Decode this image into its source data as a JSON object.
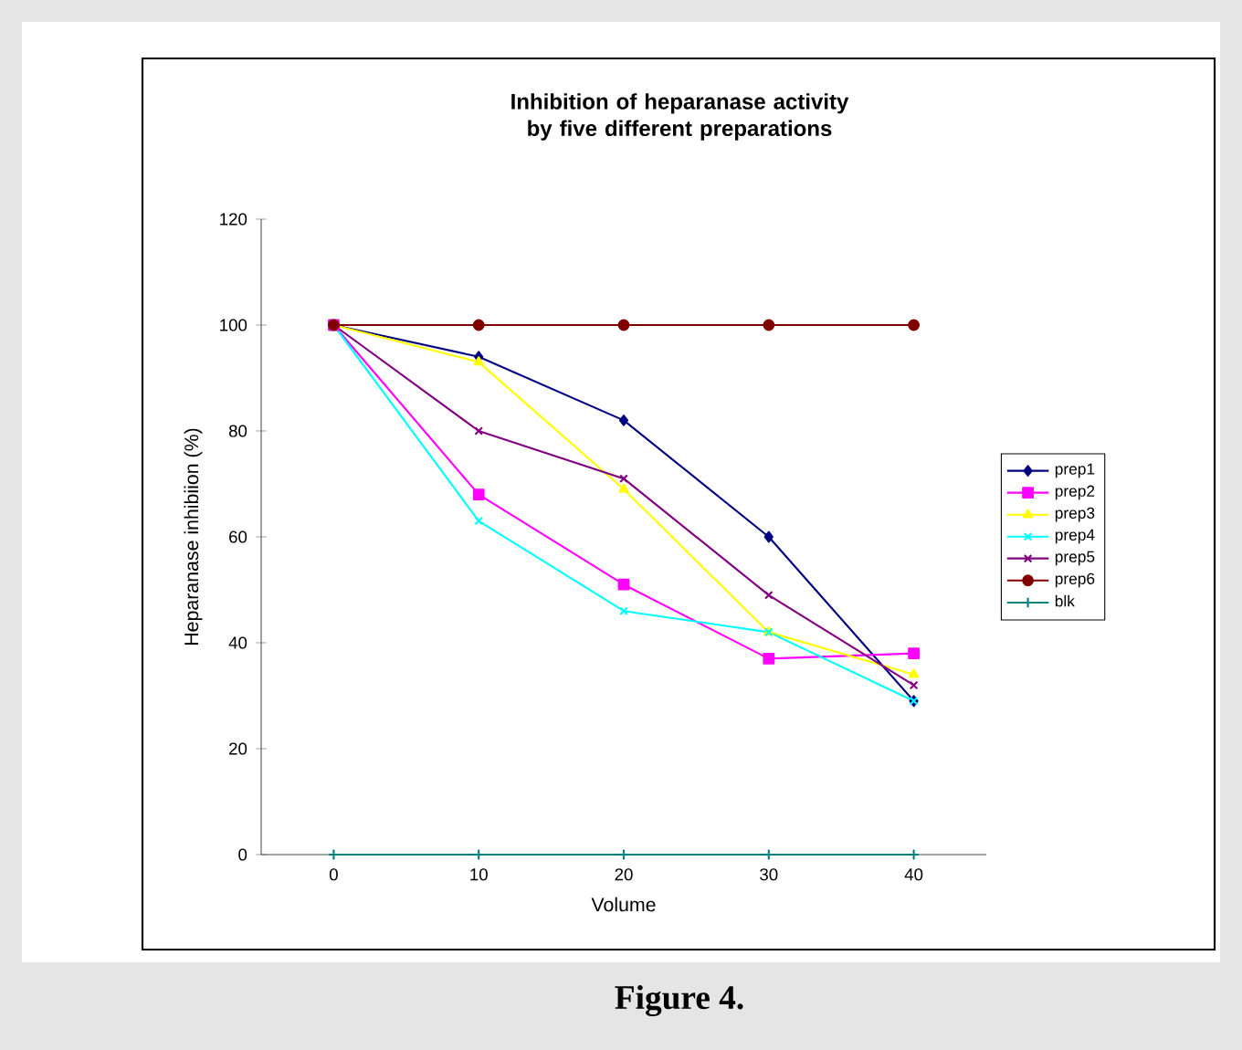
{
  "chart_data": {
    "type": "line",
    "title": "Inhibition of heparanase activity by five different preparations",
    "xlabel": "Volume",
    "ylabel": "Heparanase inhibiion (%)",
    "categories": [
      "0",
      "10",
      "20",
      "30",
      "40"
    ],
    "series": [
      {
        "name": "prep1",
        "color": "#000080",
        "marker": "diamond",
        "values": [
          100,
          94,
          82,
          60,
          29
        ]
      },
      {
        "name": "prep2",
        "color": "#ff00ff",
        "marker": "square",
        "values": [
          100,
          68,
          51,
          37,
          38
        ]
      },
      {
        "name": "prep3",
        "color": "#ffff00",
        "marker": "triangle",
        "values": [
          100,
          93,
          69,
          42,
          34
        ]
      },
      {
        "name": "prep4",
        "color": "#00ffff",
        "marker": "cross",
        "values": [
          100,
          63,
          46,
          42,
          29
        ]
      },
      {
        "name": "prep5",
        "color": "#800080",
        "marker": "cross",
        "values": [
          100,
          80,
          71,
          49,
          32
        ]
      },
      {
        "name": "prep6",
        "color": "#800000",
        "marker": "circle",
        "values": [
          100,
          100,
          100,
          100,
          100
        ]
      },
      {
        "name": "blk",
        "color": "#008080",
        "marker": "cross",
        "values": [
          0,
          0,
          0,
          0,
          0
        ]
      }
    ],
    "ylim": [
      0,
      120
    ],
    "yticks": [
      0,
      20,
      40,
      60,
      80,
      100,
      120
    ],
    "legend": "right",
    "grid": false,
    "annotations": [
      "Figure 4."
    ]
  }
}
